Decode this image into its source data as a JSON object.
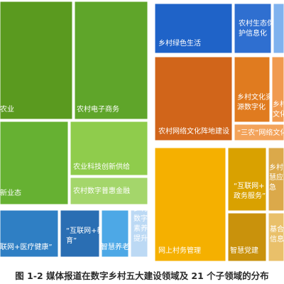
{
  "caption": "图 1-2 媒体报道在数字乡村五大建设领域及 21 个子领域的分布",
  "chart_data": {
    "type": "treemap",
    "groups": [
      {
        "id": "digital-agriculture",
        "items": [
          {
            "label": "农业",
            "color": "#5a9a1f"
          },
          {
            "label": "农村电子商务",
            "color": "#5fa52a"
          },
          {
            "label": "新业态",
            "color": "#66b132"
          },
          {
            "label": "农业科技创新供给",
            "color": "#8fcc4c"
          },
          {
            "label": "农村数字普惠金融",
            "color": "#a4d66b"
          }
        ]
      },
      {
        "id": "digital-governance-medical",
        "items": [
          {
            "label": "联网+医疗健康”",
            "color": "#2f7fc4"
          },
          {
            "label": "“互联网+教育”",
            "color": "#2a6eb3"
          },
          {
            "label": "智慧养老",
            "color": "#4da8e6"
          },
          {
            "label": "乡村数字素养提升",
            "color": "#bcd9f4"
          }
        ]
      },
      {
        "id": "green-life",
        "items": [
          {
            "label": "乡村绿色生活",
            "color": "#1f63c8"
          },
          {
            "label": "农村生态保护信息化",
            "color": "#2f6fd0"
          },
          {
            "label": "",
            "color": "#7fb2ee"
          }
        ]
      },
      {
        "id": "digital-culture",
        "items": [
          {
            "label": "农村网络文化阵地建设",
            "color": "#d1651a"
          },
          {
            "label": "乡村文化资源数字化",
            "color": "#e07b1f"
          },
          {
            "label": "乡村文化",
            "color": "#f09a4e"
          },
          {
            "label": "“三农”网络文化创作",
            "color": "#f3a35a"
          }
        ]
      },
      {
        "id": "digital-governance",
        "items": [
          {
            "label": "网上村务管理",
            "color": "#f5b000"
          },
          {
            "label": "“互联网+政务服务”",
            "color": "#d9a100"
          },
          {
            "label": "智慧党建",
            "color": "#c9920c"
          },
          {
            "label": "乡村慧应急",
            "color": "#dba94a"
          },
          {
            "label": "基合信息",
            "color": "#e9c06a"
          }
        ]
      }
    ]
  }
}
